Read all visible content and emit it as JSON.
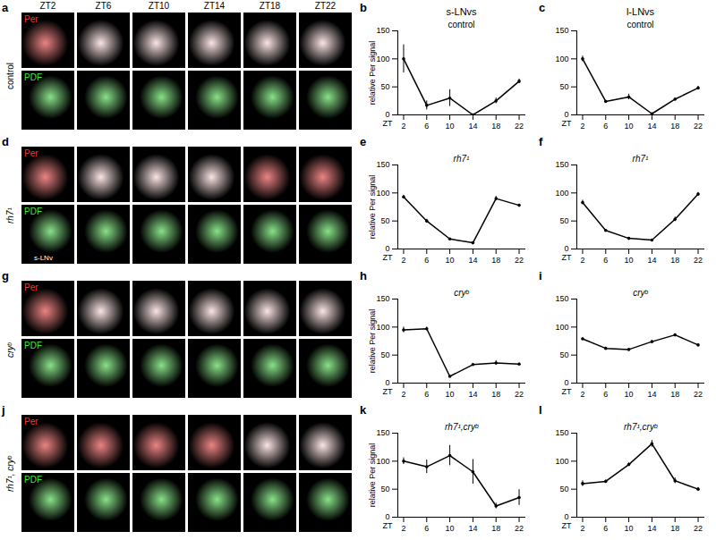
{
  "figure_panels": {
    "zt_labels": [
      "ZT2",
      "ZT6",
      "ZT10",
      "ZT14",
      "ZT18",
      "ZT22"
    ],
    "channel_labels": [
      "Per",
      "PDF"
    ],
    "rows": [
      {
        "letter": "a",
        "genotype": "control"
      },
      {
        "letter": "d",
        "genotype": "rh7¹",
        "annotation": "s-LNv"
      },
      {
        "letter": "g",
        "genotype": "cryᵇ"
      },
      {
        "letter": "j",
        "genotype": "rh7¹, cryᵇ"
      }
    ]
  },
  "chart_data": [
    {
      "type": "line",
      "panel": "b",
      "column_title": "s-LNvs",
      "title": "control",
      "y_label": "relative Per signal",
      "x_label": "ZT",
      "x": [
        2,
        6,
        10,
        14,
        18,
        22
      ],
      "values": [
        100,
        17,
        30,
        0,
        25,
        60
      ],
      "errors": [
        25,
        8,
        15,
        1,
        5,
        4
      ],
      "color": "#000000",
      "marker": "circle",
      "xlim": [
        1,
        23
      ],
      "xticks": [
        2,
        6,
        10,
        14,
        18,
        22
      ],
      "ylim": [
        0,
        150
      ],
      "yticks": [
        0,
        50,
        100,
        150
      ]
    },
    {
      "type": "line",
      "panel": "c",
      "column_title": "l-LNvs",
      "title": "control",
      "x_label": "ZT",
      "x": [
        2,
        6,
        10,
        14,
        18,
        22
      ],
      "values": [
        100,
        24,
        32,
        2,
        28,
        48
      ],
      "errors": [
        5,
        2,
        5,
        1,
        2,
        3
      ],
      "color": "#000000",
      "marker": "circle",
      "xlim": [
        1,
        23
      ],
      "xticks": [
        2,
        6,
        10,
        14,
        18,
        22
      ],
      "ylim": [
        0,
        150
      ],
      "yticks": [
        0,
        50,
        100,
        150
      ]
    },
    {
      "type": "line",
      "panel": "e",
      "title": "rh7¹",
      "y_label": "relative Per signal",
      "x_label": "ZT",
      "x": [
        2,
        6,
        10,
        14,
        18,
        22
      ],
      "values": [
        93,
        50,
        18,
        11,
        90,
        78
      ],
      "errors": [
        3,
        3,
        1,
        1,
        4,
        2
      ],
      "color": "#000000",
      "marker": "circle",
      "xlim": [
        1,
        23
      ],
      "xticks": [
        2,
        6,
        10,
        14,
        18,
        22
      ],
      "ylim": [
        0,
        150
      ],
      "yticks": [
        0,
        50,
        100,
        150
      ]
    },
    {
      "type": "line",
      "panel": "f",
      "title": "rh7¹",
      "x_label": "ZT",
      "x": [
        2,
        6,
        10,
        14,
        18,
        22
      ],
      "values": [
        83,
        33,
        19,
        16,
        53,
        98
      ],
      "errors": [
        4,
        2,
        1,
        1,
        4,
        3
      ],
      "color": "#000000",
      "marker": "circle",
      "xlim": [
        1,
        23
      ],
      "xticks": [
        2,
        6,
        10,
        14,
        18,
        22
      ],
      "ylim": [
        0,
        150
      ],
      "yticks": [
        0,
        50,
        100,
        150
      ]
    },
    {
      "type": "line",
      "panel": "h",
      "title": "cryᵇ",
      "y_label": "relative Per signal",
      "x_label": "ZT",
      "x": [
        2,
        6,
        10,
        14,
        18,
        22
      ],
      "values": [
        95,
        97,
        12,
        33,
        36,
        34
      ],
      "errors": [
        5,
        3,
        1,
        2,
        4,
        2
      ],
      "color": "#000000",
      "marker": "circle",
      "xlim": [
        1,
        23
      ],
      "xticks": [
        2,
        6,
        10,
        14,
        18,
        22
      ],
      "ylim": [
        0,
        150
      ],
      "yticks": [
        0,
        50,
        100,
        150
      ]
    },
    {
      "type": "line",
      "panel": "i",
      "title": "cryᵇ",
      "x_label": "ZT",
      "x": [
        2,
        6,
        10,
        14,
        18,
        22
      ],
      "values": [
        79,
        62,
        60,
        74,
        86,
        68
      ],
      "errors": [
        2,
        2,
        1,
        2,
        2,
        2
      ],
      "color": "#000000",
      "marker": "circle",
      "xlim": [
        1,
        23
      ],
      "xticks": [
        2,
        6,
        10,
        14,
        18,
        22
      ],
      "ylim": [
        0,
        150
      ],
      "yticks": [
        0,
        50,
        100,
        150
      ]
    },
    {
      "type": "line",
      "panel": "k",
      "title": "rh7¹,cryᵇ",
      "y_label": "relative Per signal",
      "x_label": "ZT",
      "x": [
        2,
        6,
        10,
        14,
        18,
        22
      ],
      "values": [
        100,
        90,
        110,
        81,
        20,
        35
      ],
      "errors": [
        6,
        12,
        18,
        22,
        5,
        14
      ],
      "color": "#000000",
      "marker": "circle",
      "xlim": [
        1,
        23
      ],
      "xticks": [
        2,
        6,
        10,
        14,
        18,
        22
      ],
      "ylim": [
        0,
        150
      ],
      "yticks": [
        0,
        50,
        100,
        150
      ]
    },
    {
      "type": "line",
      "panel": "l",
      "title": "rh7¹,cryᵇ",
      "x_label": "ZT",
      "x": [
        2,
        6,
        10,
        14,
        18,
        22
      ],
      "values": [
        60,
        64,
        94,
        131,
        65,
        50
      ],
      "errors": [
        5,
        2,
        3,
        6,
        5,
        3
      ],
      "color": "#000000",
      "marker": "circle",
      "xlim": [
        1,
        23
      ],
      "xticks": [
        2,
        6,
        10,
        14,
        18,
        22
      ],
      "ylim": [
        0,
        150
      ],
      "yticks": [
        0,
        50,
        100,
        150
      ]
    }
  ]
}
